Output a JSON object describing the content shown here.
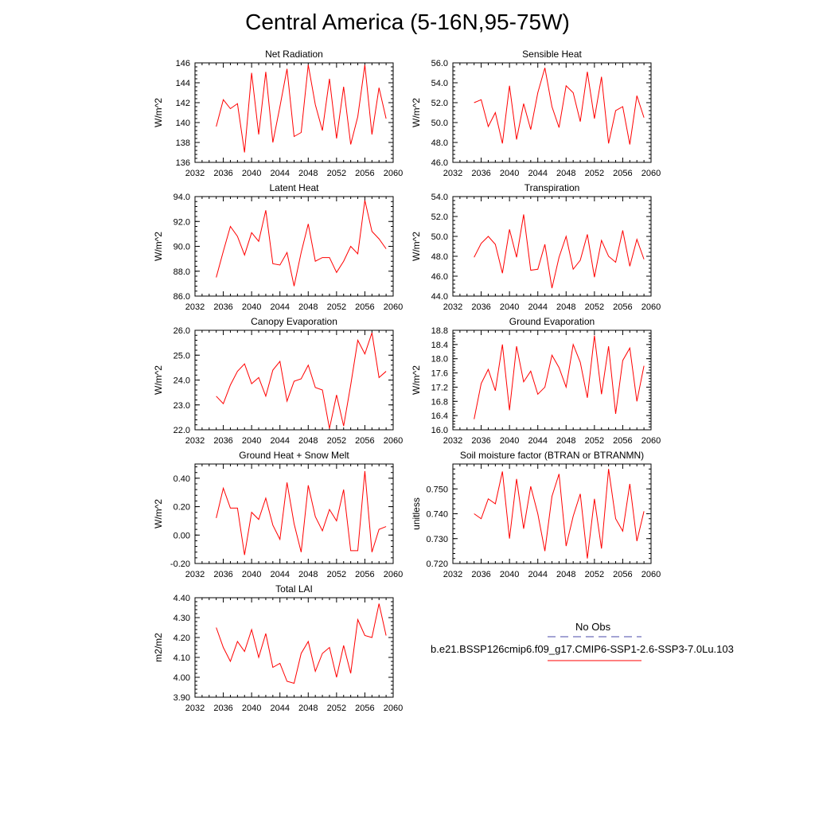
{
  "title": "Central America (5-16N,95-75W)",
  "legend": {
    "obs_label": "No Obs",
    "model_label": "b.e21.BSSP126cmip6.f09_g17.CMIP6-SSP1-2.6-SSP3-7.0Lu.103",
    "obs_color": "#4a4aa8",
    "model_color": "#ff0000"
  },
  "line_color": "#ff0000",
  "chart_data": [
    {
      "type": "line",
      "title": "Net Radiation",
      "xlabel": "",
      "ylabel": "W/m^2",
      "xlim": [
        2032,
        2060
      ],
      "ylim": [
        136,
        146
      ],
      "xticks": [
        "2032",
        "2036",
        "2040",
        "2044",
        "2048",
        "2052",
        "2056",
        "2060"
      ],
      "yticks": [
        "136",
        "138",
        "140",
        "142",
        "144",
        "146"
      ],
      "x": [
        2035,
        2036,
        2037,
        2038,
        2039,
        2040,
        2041,
        2042,
        2043,
        2044,
        2045,
        2046,
        2047,
        2048,
        2049,
        2050,
        2051,
        2052,
        2053,
        2054,
        2055,
        2056,
        2057,
        2058,
        2059
      ],
      "values": [
        139.6,
        142.3,
        141.4,
        141.9,
        137.0,
        145.0,
        138.8,
        145.1,
        138.0,
        141.6,
        145.4,
        138.6,
        139.0,
        145.8,
        141.8,
        139.2,
        144.4,
        138.4,
        143.6,
        137.8,
        140.6,
        145.8,
        138.8,
        143.5,
        140.4
      ]
    },
    {
      "type": "line",
      "title": "Sensible Heat",
      "xlabel": "",
      "ylabel": "W/m^2",
      "xlim": [
        2032,
        2060
      ],
      "ylim": [
        46.0,
        56.0
      ],
      "xticks": [
        "2032",
        "2036",
        "2040",
        "2044",
        "2048",
        "2052",
        "2056",
        "2060"
      ],
      "yticks": [
        "46.0",
        "48.0",
        "50.0",
        "52.0",
        "54.0",
        "56.0"
      ],
      "x": [
        2035,
        2036,
        2037,
        2038,
        2039,
        2040,
        2041,
        2042,
        2043,
        2044,
        2045,
        2046,
        2047,
        2048,
        2049,
        2050,
        2051,
        2052,
        2053,
        2054,
        2055,
        2056,
        2057,
        2058,
        2059
      ],
      "values": [
        52.0,
        52.3,
        49.6,
        51.0,
        47.9,
        53.7,
        48.3,
        51.9,
        49.3,
        53.0,
        55.5,
        51.6,
        49.5,
        53.7,
        53.0,
        50.1,
        55.1,
        50.4,
        54.6,
        47.9,
        51.2,
        51.6,
        47.8,
        52.7,
        50.5
      ]
    },
    {
      "type": "line",
      "title": "Latent Heat",
      "xlabel": "",
      "ylabel": "W/m^2",
      "xlim": [
        2032,
        2060
      ],
      "ylim": [
        86.0,
        94.0
      ],
      "xticks": [
        "2032",
        "2036",
        "2040",
        "2044",
        "2048",
        "2052",
        "2056",
        "2060"
      ],
      "yticks": [
        "86.0",
        "88.0",
        "90.0",
        "92.0",
        "94.0"
      ],
      "x": [
        2035,
        2036,
        2037,
        2038,
        2039,
        2040,
        2041,
        2042,
        2043,
        2044,
        2045,
        2046,
        2047,
        2048,
        2049,
        2050,
        2051,
        2052,
        2053,
        2054,
        2055,
        2056,
        2057,
        2058,
        2059
      ],
      "values": [
        87.5,
        89.6,
        91.6,
        90.8,
        89.3,
        91.1,
        90.4,
        92.9,
        88.6,
        88.5,
        89.5,
        86.8,
        89.5,
        91.8,
        88.8,
        89.1,
        89.1,
        87.9,
        88.8,
        90.0,
        89.4,
        93.7,
        91.2,
        90.6,
        89.8
      ]
    },
    {
      "type": "line",
      "title": "Transpiration",
      "xlabel": "",
      "ylabel": "W/m^2",
      "xlim": [
        2032,
        2060
      ],
      "ylim": [
        44.0,
        54.0
      ],
      "xticks": [
        "2032",
        "2036",
        "2040",
        "2044",
        "2048",
        "2052",
        "2056",
        "2060"
      ],
      "yticks": [
        "44.0",
        "46.0",
        "48.0",
        "50.0",
        "52.0",
        "54.0"
      ],
      "x": [
        2035,
        2036,
        2037,
        2038,
        2039,
        2040,
        2041,
        2042,
        2043,
        2044,
        2045,
        2046,
        2047,
        2048,
        2049,
        2050,
        2051,
        2052,
        2053,
        2054,
        2055,
        2056,
        2057,
        2058,
        2059
      ],
      "values": [
        47.9,
        49.3,
        50.0,
        49.2,
        46.3,
        50.7,
        47.9,
        52.2,
        46.6,
        46.7,
        49.2,
        44.8,
        47.9,
        50.0,
        46.7,
        47.6,
        50.2,
        45.9,
        49.6,
        48.0,
        47.4,
        50.6,
        47.0,
        49.7,
        47.7
      ]
    },
    {
      "type": "line",
      "title": "Canopy Evaporation",
      "xlabel": "",
      "ylabel": "W/m^2",
      "xlim": [
        2032,
        2060
      ],
      "ylim": [
        22.0,
        26.0
      ],
      "xticks": [
        "2032",
        "2036",
        "2040",
        "2044",
        "2048",
        "2052",
        "2056",
        "2060"
      ],
      "yticks": [
        "22.0",
        "23.0",
        "24.0",
        "25.0",
        "26.0"
      ],
      "x": [
        2035,
        2036,
        2037,
        2038,
        2039,
        2040,
        2041,
        2042,
        2043,
        2044,
        2045,
        2046,
        2047,
        2048,
        2049,
        2050,
        2051,
        2052,
        2053,
        2054,
        2055,
        2056,
        2057,
        2058,
        2059
      ],
      "values": [
        23.35,
        23.05,
        23.8,
        24.35,
        24.65,
        23.85,
        24.1,
        23.35,
        24.4,
        24.75,
        23.15,
        23.95,
        24.05,
        24.6,
        23.7,
        23.6,
        22.05,
        23.4,
        22.15,
        23.8,
        25.6,
        25.05,
        25.9,
        24.1,
        24.35
      ]
    },
    {
      "type": "line",
      "title": "Ground Evaporation",
      "xlabel": "",
      "ylabel": "W/m^2",
      "xlim": [
        2032,
        2060
      ],
      "ylim": [
        16.0,
        18.8
      ],
      "xticks": [
        "2032",
        "2036",
        "2040",
        "2044",
        "2048",
        "2052",
        "2056",
        "2060"
      ],
      "yticks": [
        "16.0",
        "16.4",
        "16.8",
        "17.2",
        "17.6",
        "18.0",
        "18.4",
        "18.8"
      ],
      "x": [
        2035,
        2036,
        2037,
        2038,
        2039,
        2040,
        2041,
        2042,
        2043,
        2044,
        2045,
        2046,
        2047,
        2048,
        2049,
        2050,
        2051,
        2052,
        2053,
        2054,
        2055,
        2056,
        2057,
        2058,
        2059
      ],
      "values": [
        16.3,
        17.3,
        17.7,
        17.1,
        18.4,
        16.55,
        18.35,
        17.35,
        17.65,
        17.0,
        17.2,
        18.1,
        17.75,
        17.2,
        18.4,
        17.9,
        16.9,
        18.65,
        17.0,
        18.35,
        16.45,
        17.95,
        18.3,
        16.8,
        17.8
      ]
    },
    {
      "type": "line",
      "title": "Ground Heat + Snow Melt",
      "xlabel": "",
      "ylabel": "W/m^2",
      "xlim": [
        2032,
        2060
      ],
      "ylim": [
        -0.2,
        0.5
      ],
      "xticks": [
        "2032",
        "2036",
        "2040",
        "2044",
        "2048",
        "2052",
        "2056",
        "2060"
      ],
      "yticks": [
        "-0.20",
        "0.00",
        "0.20",
        "0.40"
      ],
      "x": [
        2035,
        2036,
        2037,
        2038,
        2039,
        2040,
        2041,
        2042,
        2043,
        2044,
        2045,
        2046,
        2047,
        2048,
        2049,
        2050,
        2051,
        2052,
        2053,
        2054,
        2055,
        2056,
        2057,
        2058,
        2059
      ],
      "values": [
        0.12,
        0.33,
        0.19,
        0.19,
        -0.14,
        0.16,
        0.11,
        0.26,
        0.07,
        -0.03,
        0.37,
        0.08,
        -0.12,
        0.35,
        0.13,
        0.03,
        0.18,
        0.1,
        0.32,
        -0.11,
        -0.11,
        0.45,
        -0.12,
        0.04,
        0.06
      ]
    },
    {
      "type": "line",
      "title": "Soil moisture factor (BTRAN or BTRANMN)",
      "xlabel": "",
      "ylabel": "unitless",
      "xlim": [
        2032,
        2060
      ],
      "ylim": [
        0.72,
        0.76
      ],
      "xticks": [
        "2032",
        "2036",
        "2040",
        "2044",
        "2048",
        "2052",
        "2056",
        "2060"
      ],
      "yticks": [
        "0.720",
        "0.730",
        "0.740",
        "0.750"
      ],
      "x": [
        2035,
        2036,
        2037,
        2038,
        2039,
        2040,
        2041,
        2042,
        2043,
        2044,
        2045,
        2046,
        2047,
        2048,
        2049,
        2050,
        2051,
        2052,
        2053,
        2054,
        2055,
        2056,
        2057,
        2058,
        2059
      ],
      "values": [
        0.74,
        0.738,
        0.746,
        0.744,
        0.757,
        0.73,
        0.754,
        0.734,
        0.751,
        0.74,
        0.725,
        0.747,
        0.756,
        0.727,
        0.739,
        0.748,
        0.722,
        0.746,
        0.726,
        0.758,
        0.738,
        0.733,
        0.752,
        0.729,
        0.741
      ]
    },
    {
      "type": "line",
      "title": "Total LAI",
      "xlabel": "",
      "ylabel": "m2/m2",
      "xlim": [
        2032,
        2060
      ],
      "ylim": [
        3.9,
        4.4
      ],
      "xticks": [
        "2032",
        "2036",
        "2040",
        "2044",
        "2048",
        "2052",
        "2056",
        "2060"
      ],
      "yticks": [
        "3.90",
        "4.00",
        "4.10",
        "4.20",
        "4.30",
        "4.40"
      ],
      "x": [
        2035,
        2036,
        2037,
        2038,
        2039,
        2040,
        2041,
        2042,
        2043,
        2044,
        2045,
        2046,
        2047,
        2048,
        2049,
        2050,
        2051,
        2052,
        2053,
        2054,
        2055,
        2056,
        2057,
        2058,
        2059
      ],
      "values": [
        4.25,
        4.15,
        4.08,
        4.18,
        4.13,
        4.24,
        4.1,
        4.22,
        4.05,
        4.07,
        3.98,
        3.97,
        4.12,
        4.18,
        4.03,
        4.12,
        4.15,
        4.0,
        4.16,
        4.02,
        4.29,
        4.21,
        4.2,
        4.37,
        4.21
      ]
    }
  ]
}
